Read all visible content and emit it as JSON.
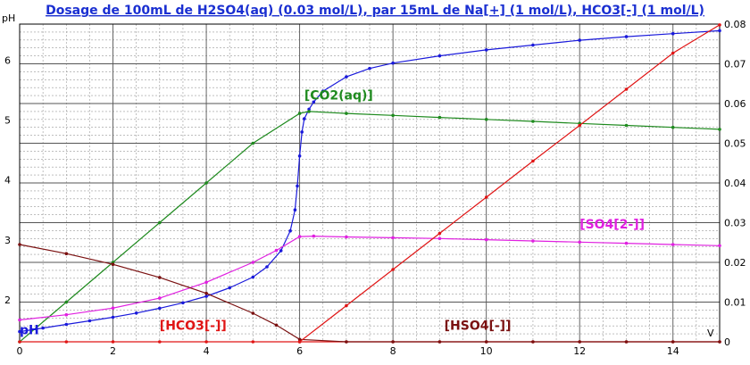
{
  "chart_data": {
    "type": "line",
    "title": "Dosage de 100mL de H2SO4(aq) (0.03 mol/L),  par 15mL  de Na[+] (1 mol/L), HCO3[-] (1 mol/L)",
    "xlabel": "V",
    "ylabel_left": "pH",
    "xlim": [
      0,
      15
    ],
    "ylim_left": [
      1.3,
      6.6
    ],
    "ylim_right": [
      0,
      0.08
    ],
    "x_ticks": [
      "0",
      "2",
      "4",
      "6",
      "8",
      "10",
      "12",
      "14"
    ],
    "y_left_ticks": [
      "2",
      "3",
      "4",
      "5",
      "6"
    ],
    "y_right_ticks": [
      "0",
      "0.01",
      "0.02",
      "0.03",
      "0.04",
      "0.05",
      "0.06",
      "0.07",
      "0.08"
    ],
    "grid": true,
    "colors": {
      "title": "#1a2fd1",
      "pH": "#1a1adb",
      "CO2": "#1e8a1e",
      "SO4": "#e020e0",
      "HCO3": "#e01515",
      "HSO4": "#7a1010",
      "Na": "#e01515"
    },
    "series": [
      {
        "name": "pH",
        "axis": "left",
        "x": [
          0,
          0.5,
          1,
          1.5,
          2,
          2.5,
          3,
          3.5,
          4,
          4.5,
          5,
          5.3,
          5.6,
          5.8,
          5.9,
          5.95,
          6.0,
          6.05,
          6.1,
          6.2,
          6.3,
          6.5,
          7,
          7.5,
          8,
          9,
          10,
          11,
          12,
          13,
          14,
          15
        ],
        "y": [
          1.47,
          1.53,
          1.59,
          1.65,
          1.71,
          1.78,
          1.86,
          1.95,
          2.06,
          2.2,
          2.38,
          2.55,
          2.82,
          3.15,
          3.5,
          3.9,
          4.4,
          4.8,
          5.02,
          5.18,
          5.3,
          5.48,
          5.72,
          5.86,
          5.95,
          6.07,
          6.17,
          6.25,
          6.33,
          6.39,
          6.44,
          6.49
        ]
      },
      {
        "name": "[CO2(aq)]",
        "axis": "right",
        "x": [
          0,
          1,
          2,
          3,
          4,
          5,
          6,
          6.2,
          7,
          8,
          9,
          10,
          11,
          12,
          13,
          14,
          15
        ],
        "y": [
          0,
          0.01,
          0.02,
          0.03,
          0.04,
          0.05,
          0.0575,
          0.058,
          0.0575,
          0.057,
          0.0565,
          0.056,
          0.0555,
          0.055,
          0.0545,
          0.054,
          0.0535
        ]
      },
      {
        "name": "[SO4[2-]]",
        "axis": "right",
        "x": [
          0,
          1,
          2,
          3,
          4,
          5,
          5.5,
          6,
          6.3,
          7,
          8,
          9,
          10,
          11,
          12,
          13,
          14,
          15
        ],
        "y": [
          0.0055,
          0.0068,
          0.0085,
          0.011,
          0.015,
          0.02,
          0.023,
          0.0265,
          0.0266,
          0.0264,
          0.0262,
          0.026,
          0.0257,
          0.0254,
          0.0251,
          0.0248,
          0.0245,
          0.0242
        ]
      },
      {
        "name": "[HCO3[-]]",
        "axis": "right",
        "x": [
          0,
          1,
          2,
          3,
          4,
          5,
          6,
          7,
          8,
          9,
          10,
          11,
          12,
          13,
          14,
          15
        ],
        "y": [
          0,
          0,
          0,
          0,
          0,
          0,
          0,
          0,
          0,
          0,
          0,
          0,
          0,
          0,
          0,
          0
        ]
      },
      {
        "name": "[HSO4[-]]",
        "axis": "right",
        "x": [
          0,
          1,
          2,
          3,
          4,
          5,
          5.5,
          6,
          7,
          8,
          9,
          10,
          11,
          12,
          13,
          14,
          15
        ],
        "y": [
          0.0245,
          0.0222,
          0.0195,
          0.0162,
          0.0122,
          0.0072,
          0.0042,
          0.0006,
          0,
          0,
          0,
          0,
          0,
          0,
          0,
          0,
          0
        ]
      },
      {
        "axis": "right",
        "x": [
          6,
          7,
          8,
          9,
          10,
          11,
          12,
          13,
          14,
          15
        ],
        "y": [
          0,
          0.0091,
          0.0182,
          0.0273,
          0.0364,
          0.0455,
          0.0545,
          0.0636,
          0.0727,
          0.0798
        ]
      }
    ]
  }
}
